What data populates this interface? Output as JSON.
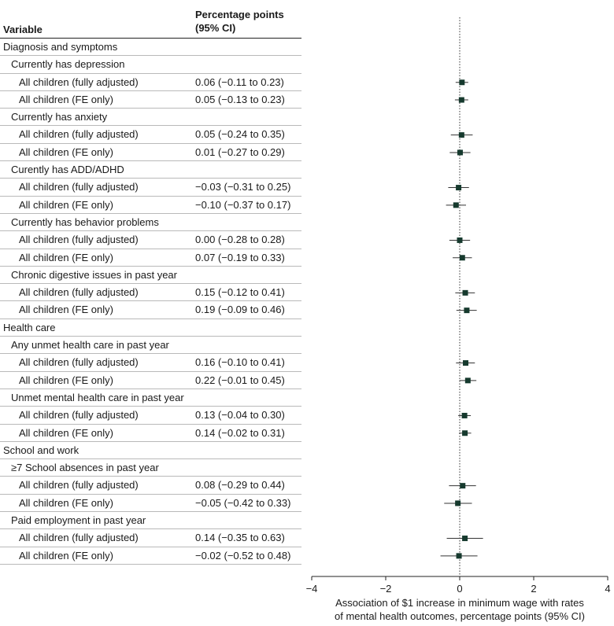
{
  "header": {
    "variable": "Variable",
    "estimate_line1": "Percentage points",
    "estimate_line2": "(95% CI)"
  },
  "rows": [
    {
      "level": 0,
      "label": "Diagnosis and symptoms",
      "ci": ""
    },
    {
      "level": 1,
      "label": "Currently has depression",
      "ci": ""
    },
    {
      "level": 2,
      "label": "All children (fully adjusted)",
      "ci": "0.06 (−0.11 to 0.23)"
    },
    {
      "level": 2,
      "label": "All children (FE only)",
      "ci": "0.05 (−0.13 to 0.23)"
    },
    {
      "level": 1,
      "label": "Currently has anxiety",
      "ci": ""
    },
    {
      "level": 2,
      "label": "All children (fully adjusted)",
      "ci": "0.05 (−0.24 to 0.35)"
    },
    {
      "level": 2,
      "label": "All children (FE only)",
      "ci": "0.01 (−0.27 to 0.29)"
    },
    {
      "level": 1,
      "label": "Curently has ADD/ADHD",
      "ci": ""
    },
    {
      "level": 2,
      "label": "All children (fully adjusted)",
      "ci": "−0.03 (−0.31 to 0.25)"
    },
    {
      "level": 2,
      "label": "All children (FE only)",
      "ci": "−0.10 (−0.37 to 0.17)"
    },
    {
      "level": 1,
      "label": "Currently has behavior problems",
      "ci": ""
    },
    {
      "level": 2,
      "label": "All children (fully adjusted)",
      "ci": "0.00 (−0.28  to 0.28)"
    },
    {
      "level": 2,
      "label": "All children (FE only)",
      "ci": "0.07 (−0.19 to 0.33)"
    },
    {
      "level": 1,
      "label": "Chronic digestive issues in past year",
      "ci": ""
    },
    {
      "level": 2,
      "label": "All children (fully adjusted)",
      "ci": "0.15 (−0.12 to 0.41)"
    },
    {
      "level": 2,
      "label": "All children (FE only)",
      "ci": "0.19 (−0.09 to 0.46)"
    },
    {
      "level": 0,
      "label": "Health care",
      "ci": ""
    },
    {
      "level": 1,
      "label": "Any unmet health care in past year",
      "ci": ""
    },
    {
      "level": 2,
      "label": "All children (fully adjusted)",
      "ci": "0.16 (−0.10 to 0.41)"
    },
    {
      "level": 2,
      "label": "All children (FE only)",
      "ci": "0.22 (−0.01 to 0.45)"
    },
    {
      "level": 1,
      "label": "Unmet mental health care in past year",
      "ci": ""
    },
    {
      "level": 2,
      "label": "All children (fully adjusted)",
      "ci": "0.13 (−0.04 to 0.30)"
    },
    {
      "level": 2,
      "label": "All children (FE only)",
      "ci": "0.14 (−0.02 to 0.31)"
    },
    {
      "level": 0,
      "label": "School and work",
      "ci": ""
    },
    {
      "level": 1,
      "label": "≥7 School absences in past year",
      "ci": ""
    },
    {
      "level": 2,
      "label": "All children (fully adjusted)",
      "ci": "0.08 (−0.29 to 0.44)"
    },
    {
      "level": 2,
      "label": "All children (FE only)",
      "ci": "−0.05 (−0.42 to 0.33)"
    },
    {
      "level": 1,
      "label": "Paid employment in past year",
      "ci": ""
    },
    {
      "level": 2,
      "label": "All children (fully adjusted)",
      "ci": "0.14 (−0.35 to 0.63)"
    },
    {
      "level": 2,
      "label": "All children (FE only)",
      "ci": "−0.02 (−0.52 to 0.48)"
    }
  ],
  "chart_data": {
    "type": "forest",
    "xlabel_line1": "Association of $1 increase in minimum wage with rates",
    "xlabel_line2": "of mental health outcomes, percentage points (95% CI)",
    "xlim": [
      -4,
      4
    ],
    "xticks": [
      -4,
      -2,
      0,
      2,
      4
    ],
    "reference_line": 0,
    "colors": {
      "marker": "#163a2e",
      "whisker": "#333333",
      "axis": "#222222"
    },
    "points": [
      {
        "row": 2,
        "estimate": 0.06,
        "lower": -0.11,
        "upper": 0.23
      },
      {
        "row": 3,
        "estimate": 0.05,
        "lower": -0.13,
        "upper": 0.23
      },
      {
        "row": 5,
        "estimate": 0.05,
        "lower": -0.24,
        "upper": 0.35
      },
      {
        "row": 6,
        "estimate": 0.01,
        "lower": -0.27,
        "upper": 0.29
      },
      {
        "row": 8,
        "estimate": -0.03,
        "lower": -0.31,
        "upper": 0.25
      },
      {
        "row": 9,
        "estimate": -0.1,
        "lower": -0.37,
        "upper": 0.17
      },
      {
        "row": 11,
        "estimate": 0.0,
        "lower": -0.28,
        "upper": 0.28
      },
      {
        "row": 12,
        "estimate": 0.07,
        "lower": -0.19,
        "upper": 0.33
      },
      {
        "row": 14,
        "estimate": 0.15,
        "lower": -0.12,
        "upper": 0.41
      },
      {
        "row": 15,
        "estimate": 0.19,
        "lower": -0.09,
        "upper": 0.46
      },
      {
        "row": 18,
        "estimate": 0.16,
        "lower": -0.1,
        "upper": 0.41
      },
      {
        "row": 19,
        "estimate": 0.22,
        "lower": -0.01,
        "upper": 0.45
      },
      {
        "row": 21,
        "estimate": 0.13,
        "lower": -0.04,
        "upper": 0.3
      },
      {
        "row": 22,
        "estimate": 0.14,
        "lower": -0.02,
        "upper": 0.31
      },
      {
        "row": 25,
        "estimate": 0.08,
        "lower": -0.29,
        "upper": 0.44
      },
      {
        "row": 26,
        "estimate": -0.05,
        "lower": -0.42,
        "upper": 0.33
      },
      {
        "row": 28,
        "estimate": 0.14,
        "lower": -0.35,
        "upper": 0.63
      },
      {
        "row": 29,
        "estimate": -0.02,
        "lower": -0.52,
        "upper": 0.48
      }
    ]
  }
}
